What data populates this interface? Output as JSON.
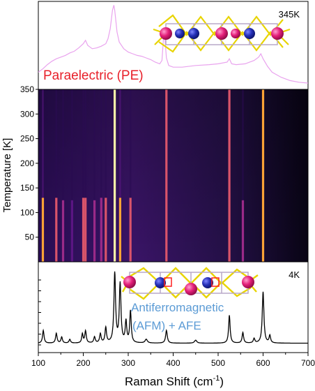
{
  "chart_data": [
    {
      "type": "line",
      "panel": "top",
      "annotations": {
        "temperature": "345K",
        "phase": "Paraelectric (PE)"
      },
      "colors": {
        "line": "#e9a3ee",
        "phase_label": "#e8202a"
      },
      "x": [
        100,
        110,
        120,
        130,
        140,
        150,
        160,
        170,
        180,
        190,
        200,
        205,
        210,
        220,
        230,
        240,
        250,
        255,
        260,
        265,
        268,
        270,
        272,
        275,
        280,
        290,
        300,
        310,
        320,
        330,
        340,
        350,
        360,
        370,
        375,
        378,
        380,
        382,
        385,
        390,
        400,
        420,
        450,
        480,
        500,
        520,
        525,
        530,
        540,
        560,
        580,
        590,
        595,
        600,
        610,
        620,
        640,
        660,
        680,
        700
      ],
      "y": [
        0.18,
        0.22,
        0.27,
        0.31,
        0.34,
        0.36,
        0.38,
        0.41,
        0.43,
        0.47,
        0.52,
        0.56,
        0.5,
        0.46,
        0.47,
        0.49,
        0.52,
        0.58,
        0.7,
        0.92,
        0.98,
        0.92,
        0.82,
        0.66,
        0.54,
        0.46,
        0.42,
        0.4,
        0.38,
        0.37,
        0.35,
        0.33,
        0.3,
        0.28,
        0.32,
        0.55,
        0.7,
        0.55,
        0.35,
        0.26,
        0.24,
        0.24,
        0.26,
        0.27,
        0.28,
        0.3,
        0.34,
        0.28,
        0.27,
        0.28,
        0.32,
        0.36,
        0.4,
        0.34,
        0.25,
        0.18,
        0.12,
        0.08,
        0.06,
        0.05
      ],
      "xlim": [
        100,
        700
      ]
    },
    {
      "type": "heatmap",
      "panel": "middle",
      "ylabel": "Temperature [K]",
      "yticks": [
        50,
        100,
        150,
        200,
        250,
        300,
        350
      ],
      "ylim": [
        0,
        350
      ],
      "xlim": [
        100,
        700
      ],
      "colormap": [
        "#000010",
        "#2a0b52",
        "#5a1582",
        "#9a2a88",
        "#d9546a",
        "#fca236",
        "#fcf4a8"
      ],
      "lines": [
        {
          "x": 110,
          "t_max": 130,
          "intensity": 0.75
        },
        {
          "x": 140,
          "t_max": 130,
          "intensity": 0.7
        },
        {
          "x": 155,
          "t_max": 125,
          "intensity": 0.45
        },
        {
          "x": 175,
          "t_max": 125,
          "intensity": 0.4
        },
        {
          "x": 200,
          "t_max": 130,
          "intensity": 0.6
        },
        {
          "x": 205,
          "t_max": 130,
          "intensity": 0.65
        },
        {
          "x": 225,
          "t_max": 125,
          "intensity": 0.45
        },
        {
          "x": 240,
          "t_max": 130,
          "intensity": 0.55
        },
        {
          "x": 250,
          "t_max": 130,
          "intensity": 0.6
        },
        {
          "x": 270,
          "t_max": 350,
          "intensity": 0.95
        },
        {
          "x": 282,
          "t_max": 130,
          "intensity": 0.85
        },
        {
          "x": 305,
          "t_max": 130,
          "intensity": 0.7
        },
        {
          "x": 385,
          "t_max": 350,
          "intensity": 0.72
        },
        {
          "x": 525,
          "t_max": 350,
          "intensity": 0.6
        },
        {
          "x": 555,
          "t_max": 125,
          "intensity": 0.45
        },
        {
          "x": 600,
          "t_max": 350,
          "intensity": 0.85
        }
      ]
    },
    {
      "type": "line",
      "panel": "bottom",
      "annotations": {
        "temperature": "4K",
        "phase_line1": "Antiferromagnetic",
        "phase_line2": "(AFM) + AFE"
      },
      "colors": {
        "line": "#000000",
        "phase_label": "#5b9bd5"
      },
      "xlabel": "Raman Shift (cm",
      "xlabel_sup": "-1",
      "xlabel_suffix": ")",
      "xticks": [
        100,
        200,
        300,
        400,
        500,
        600,
        700
      ],
      "xlim": [
        100,
        700
      ],
      "baseline": 0.05,
      "peaks": [
        {
          "x": 111,
          "h": 0.17,
          "w": 2.0
        },
        {
          "x": 140,
          "h": 0.13,
          "w": 2.0
        },
        {
          "x": 152,
          "h": 0.08,
          "w": 2.0
        },
        {
          "x": 170,
          "h": 0.05,
          "w": 2.0
        },
        {
          "x": 198,
          "h": 0.12,
          "w": 1.8
        },
        {
          "x": 205,
          "h": 0.16,
          "w": 2.0
        },
        {
          "x": 225,
          "h": 0.08,
          "w": 2.0
        },
        {
          "x": 238,
          "h": 0.12,
          "w": 2.0
        },
        {
          "x": 250,
          "h": 0.2,
          "w": 2.0
        },
        {
          "x": 270,
          "h": 0.92,
          "w": 2.2
        },
        {
          "x": 282,
          "h": 0.78,
          "w": 2.2
        },
        {
          "x": 295,
          "h": 0.28,
          "w": 2.0
        },
        {
          "x": 305,
          "h": 0.42,
          "w": 2.0
        },
        {
          "x": 340,
          "h": 0.05,
          "w": 3.0
        },
        {
          "x": 385,
          "h": 0.17,
          "w": 2.2
        },
        {
          "x": 450,
          "h": 0.04,
          "w": 3.0
        },
        {
          "x": 525,
          "h": 0.37,
          "w": 2.0
        },
        {
          "x": 555,
          "h": 0.14,
          "w": 2.0
        },
        {
          "x": 580,
          "h": 0.06,
          "w": 2.0
        },
        {
          "x": 600,
          "h": 0.68,
          "w": 2.2
        },
        {
          "x": 615,
          "h": 0.1,
          "w": 2.0
        }
      ]
    }
  ]
}
